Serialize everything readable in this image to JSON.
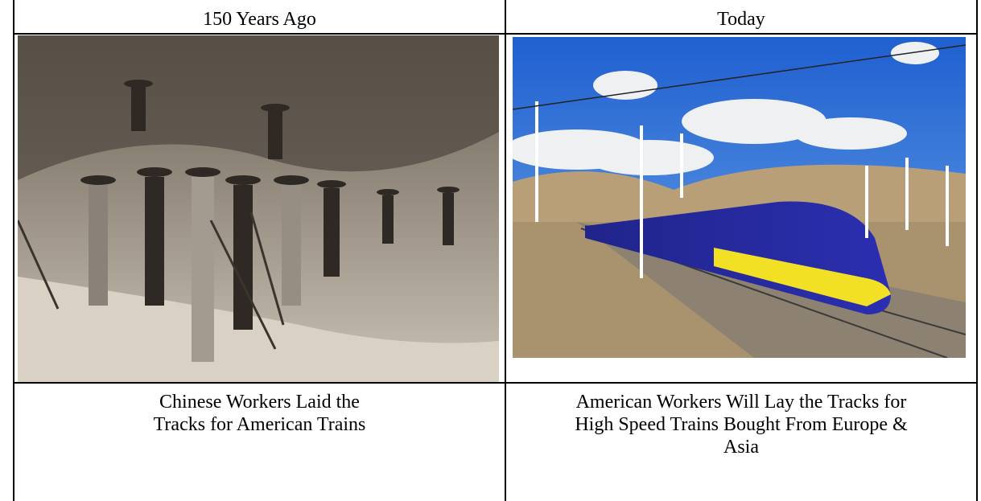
{
  "table": {
    "headers": [
      "150 Years Ago",
      "Today"
    ],
    "captions": [
      [
        "Chinese Workers Laid the",
        "Tracks for American Trains"
      ],
      [
        "American Workers Will Lay the Tracks for",
        "High Speed Trains Bought From Europe &",
        "Asia"
      ]
    ]
  }
}
